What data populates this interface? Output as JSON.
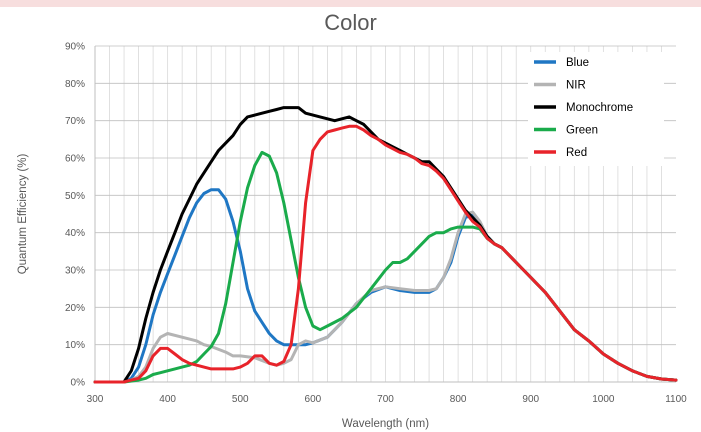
{
  "chart_data": {
    "type": "line",
    "title": "Color",
    "xlabel": "Wavelength (nm)",
    "ylabel": "Quantum Efficiency (%)",
    "xlim": [
      300,
      1100
    ],
    "ylim": [
      0,
      90
    ],
    "x_ticks": [
      300,
      400,
      500,
      600,
      700,
      800,
      900,
      1000,
      1100
    ],
    "y_ticks": [
      "0%",
      "10%",
      "20%",
      "30%",
      "40%",
      "50%",
      "60%",
      "70%",
      "80%",
      "90%"
    ],
    "grid": true,
    "legend_position": "top-right",
    "series": [
      {
        "name": "Blue",
        "color": "#1f77c4",
        "points": [
          [
            300,
            0
          ],
          [
            340,
            0
          ],
          [
            350,
            1
          ],
          [
            360,
            4
          ],
          [
            370,
            10
          ],
          [
            380,
            18
          ],
          [
            390,
            24
          ],
          [
            400,
            29
          ],
          [
            410,
            34
          ],
          [
            420,
            39
          ],
          [
            430,
            44
          ],
          [
            440,
            48
          ],
          [
            450,
            50.5
          ],
          [
            460,
            51.5
          ],
          [
            470,
            51.5
          ],
          [
            480,
            49
          ],
          [
            490,
            43
          ],
          [
            500,
            35
          ],
          [
            510,
            25
          ],
          [
            520,
            19
          ],
          [
            530,
            16
          ],
          [
            540,
            13
          ],
          [
            550,
            11
          ],
          [
            560,
            10
          ],
          [
            570,
            10
          ],
          [
            580,
            10
          ],
          [
            590,
            10
          ],
          [
            600,
            10.5
          ],
          [
            620,
            12
          ],
          [
            640,
            16
          ],
          [
            660,
            21
          ],
          [
            680,
            24
          ],
          [
            700,
            25.5
          ],
          [
            720,
            24.5
          ],
          [
            740,
            24
          ],
          [
            760,
            24
          ],
          [
            770,
            25
          ],
          [
            780,
            28
          ],
          [
            790,
            32
          ],
          [
            800,
            39
          ],
          [
            810,
            44
          ],
          [
            820,
            45
          ],
          [
            830,
            42
          ],
          [
            840,
            39
          ],
          [
            850,
            37
          ],
          [
            860,
            36
          ],
          [
            880,
            32
          ],
          [
            900,
            28
          ],
          [
            920,
            24
          ],
          [
            940,
            19
          ],
          [
            960,
            14
          ],
          [
            980,
            11
          ],
          [
            1000,
            7.5
          ],
          [
            1020,
            5
          ],
          [
            1040,
            3
          ],
          [
            1060,
            1.5
          ],
          [
            1080,
            0.8
          ],
          [
            1100,
            0.5
          ]
        ]
      },
      {
        "name": "NIR",
        "color": "#b4b4b4",
        "points": [
          [
            300,
            0
          ],
          [
            340,
            0
          ],
          [
            350,
            0.5
          ],
          [
            360,
            1.5
          ],
          [
            370,
            4
          ],
          [
            380,
            9
          ],
          [
            390,
            12
          ],
          [
            400,
            13
          ],
          [
            420,
            12
          ],
          [
            440,
            11
          ],
          [
            450,
            10
          ],
          [
            460,
            9.5
          ],
          [
            480,
            8
          ],
          [
            490,
            7
          ],
          [
            500,
            7
          ],
          [
            520,
            6.5
          ],
          [
            540,
            5
          ],
          [
            550,
            4.5
          ],
          [
            560,
            5
          ],
          [
            570,
            6
          ],
          [
            580,
            10
          ],
          [
            590,
            11
          ],
          [
            600,
            10.5
          ],
          [
            620,
            12
          ],
          [
            640,
            16
          ],
          [
            660,
            21
          ],
          [
            680,
            24.5
          ],
          [
            700,
            25.5
          ],
          [
            720,
            25
          ],
          [
            740,
            24.5
          ],
          [
            760,
            24.5
          ],
          [
            770,
            25
          ],
          [
            780,
            28
          ],
          [
            790,
            33
          ],
          [
            800,
            40
          ],
          [
            810,
            45
          ],
          [
            820,
            45.5
          ],
          [
            830,
            43
          ],
          [
            840,
            39
          ],
          [
            850,
            37
          ],
          [
            860,
            36
          ],
          [
            880,
            32
          ],
          [
            900,
            28
          ],
          [
            920,
            24
          ],
          [
            940,
            19
          ],
          [
            960,
            14
          ],
          [
            980,
            11
          ],
          [
            1000,
            7.5
          ],
          [
            1020,
            5
          ],
          [
            1040,
            3
          ],
          [
            1060,
            1.5
          ],
          [
            1080,
            0.8
          ],
          [
            1100,
            0.5
          ]
        ]
      },
      {
        "name": "Monochrome",
        "color": "#000000",
        "points": [
          [
            300,
            0
          ],
          [
            340,
            0
          ],
          [
            350,
            3
          ],
          [
            360,
            9
          ],
          [
            370,
            17
          ],
          [
            380,
            24
          ],
          [
            390,
            30
          ],
          [
            400,
            35
          ],
          [
            410,
            40
          ],
          [
            420,
            45
          ],
          [
            430,
            49
          ],
          [
            440,
            53
          ],
          [
            450,
            56
          ],
          [
            460,
            59
          ],
          [
            470,
            62
          ],
          [
            480,
            64
          ],
          [
            490,
            66
          ],
          [
            500,
            69
          ],
          [
            510,
            71
          ],
          [
            520,
            71.5
          ],
          [
            530,
            72
          ],
          [
            540,
            72.5
          ],
          [
            550,
            73
          ],
          [
            560,
            73.5
          ],
          [
            570,
            73.5
          ],
          [
            580,
            73.5
          ],
          [
            590,
            72
          ],
          [
            600,
            71.5
          ],
          [
            610,
            71
          ],
          [
            620,
            70.5
          ],
          [
            630,
            70
          ],
          [
            640,
            70.5
          ],
          [
            650,
            71
          ],
          [
            660,
            70
          ],
          [
            670,
            69
          ],
          [
            680,
            67
          ],
          [
            690,
            65
          ],
          [
            700,
            64
          ],
          [
            710,
            63
          ],
          [
            720,
            62
          ],
          [
            730,
            61
          ],
          [
            740,
            60
          ],
          [
            750,
            59
          ],
          [
            760,
            59
          ],
          [
            770,
            57
          ],
          [
            780,
            55
          ],
          [
            790,
            52
          ],
          [
            800,
            49
          ],
          [
            810,
            46
          ],
          [
            820,
            44
          ],
          [
            830,
            42
          ],
          [
            840,
            39
          ],
          [
            850,
            37
          ],
          [
            860,
            36
          ],
          [
            880,
            32
          ],
          [
            900,
            28
          ],
          [
            920,
            24
          ],
          [
            940,
            19
          ],
          [
            960,
            14
          ],
          [
            980,
            11
          ],
          [
            1000,
            7.5
          ],
          [
            1020,
            5
          ],
          [
            1040,
            3
          ],
          [
            1060,
            1.5
          ],
          [
            1080,
            0.8
          ],
          [
            1100,
            0.5
          ]
        ]
      },
      {
        "name": "Green",
        "color": "#1aab4b",
        "points": [
          [
            300,
            0
          ],
          [
            340,
            0
          ],
          [
            360,
            0.5
          ],
          [
            370,
            1
          ],
          [
            380,
            2
          ],
          [
            390,
            2.5
          ],
          [
            400,
            3
          ],
          [
            410,
            3.5
          ],
          [
            420,
            4
          ],
          [
            430,
            4.5
          ],
          [
            440,
            5.5
          ],
          [
            450,
            7.5
          ],
          [
            460,
            9.5
          ],
          [
            470,
            13
          ],
          [
            480,
            21
          ],
          [
            490,
            32
          ],
          [
            500,
            43
          ],
          [
            510,
            52
          ],
          [
            520,
            58
          ],
          [
            530,
            61.5
          ],
          [
            540,
            60.5
          ],
          [
            550,
            56
          ],
          [
            560,
            48
          ],
          [
            570,
            38
          ],
          [
            580,
            28
          ],
          [
            590,
            20
          ],
          [
            600,
            15
          ],
          [
            610,
            14
          ],
          [
            620,
            15
          ],
          [
            640,
            17
          ],
          [
            660,
            20
          ],
          [
            680,
            25
          ],
          [
            700,
            30
          ],
          [
            710,
            32
          ],
          [
            720,
            32
          ],
          [
            730,
            33
          ],
          [
            740,
            35
          ],
          [
            750,
            37
          ],
          [
            760,
            39
          ],
          [
            770,
            40
          ],
          [
            780,
            40
          ],
          [
            790,
            41
          ],
          [
            800,
            41.5
          ],
          [
            810,
            41.5
          ],
          [
            820,
            41.5
          ],
          [
            830,
            41
          ],
          [
            840,
            38.5
          ],
          [
            850,
            37
          ],
          [
            860,
            36
          ],
          [
            880,
            32
          ],
          [
            900,
            28
          ],
          [
            920,
            24
          ],
          [
            940,
            19
          ],
          [
            960,
            14
          ],
          [
            980,
            11
          ],
          [
            1000,
            7.5
          ],
          [
            1020,
            5
          ],
          [
            1040,
            3
          ],
          [
            1060,
            1.5
          ],
          [
            1080,
            0.8
          ],
          [
            1100,
            0.5
          ]
        ]
      },
      {
        "name": "Red",
        "color": "#e8232a",
        "points": [
          [
            300,
            0
          ],
          [
            340,
            0
          ],
          [
            350,
            0.5
          ],
          [
            360,
            1
          ],
          [
            370,
            3
          ],
          [
            380,
            7
          ],
          [
            390,
            9
          ],
          [
            400,
            9
          ],
          [
            410,
            7.5
          ],
          [
            420,
            6
          ],
          [
            430,
            5
          ],
          [
            440,
            4.5
          ],
          [
            450,
            4
          ],
          [
            460,
            3.5
          ],
          [
            470,
            3.5
          ],
          [
            480,
            3.5
          ],
          [
            490,
            3.5
          ],
          [
            500,
            4
          ],
          [
            510,
            5
          ],
          [
            520,
            7
          ],
          [
            530,
            7
          ],
          [
            540,
            5
          ],
          [
            550,
            4.5
          ],
          [
            560,
            5.5
          ],
          [
            570,
            10
          ],
          [
            580,
            25
          ],
          [
            590,
            48
          ],
          [
            600,
            62
          ],
          [
            610,
            65
          ],
          [
            620,
            67
          ],
          [
            630,
            67.5
          ],
          [
            640,
            68
          ],
          [
            650,
            68.5
          ],
          [
            660,
            68.5
          ],
          [
            670,
            67.5
          ],
          [
            680,
            66
          ],
          [
            690,
            65
          ],
          [
            700,
            63.5
          ],
          [
            710,
            62.5
          ],
          [
            720,
            61.5
          ],
          [
            730,
            61
          ],
          [
            740,
            60
          ],
          [
            750,
            58.5
          ],
          [
            760,
            58
          ],
          [
            770,
            56.5
          ],
          [
            780,
            54.5
          ],
          [
            790,
            51.5
          ],
          [
            800,
            48.5
          ],
          [
            810,
            45.5
          ],
          [
            820,
            43
          ],
          [
            830,
            41.5
          ],
          [
            840,
            38.5
          ],
          [
            850,
            37
          ],
          [
            860,
            36
          ],
          [
            880,
            32
          ],
          [
            900,
            28
          ],
          [
            920,
            24
          ],
          [
            940,
            19
          ],
          [
            960,
            14
          ],
          [
            980,
            11
          ],
          [
            1000,
            7.5
          ],
          [
            1020,
            5
          ],
          [
            1040,
            3
          ],
          [
            1060,
            1.5
          ],
          [
            1080,
            0.8
          ],
          [
            1100,
            0.5
          ]
        ]
      }
    ]
  }
}
